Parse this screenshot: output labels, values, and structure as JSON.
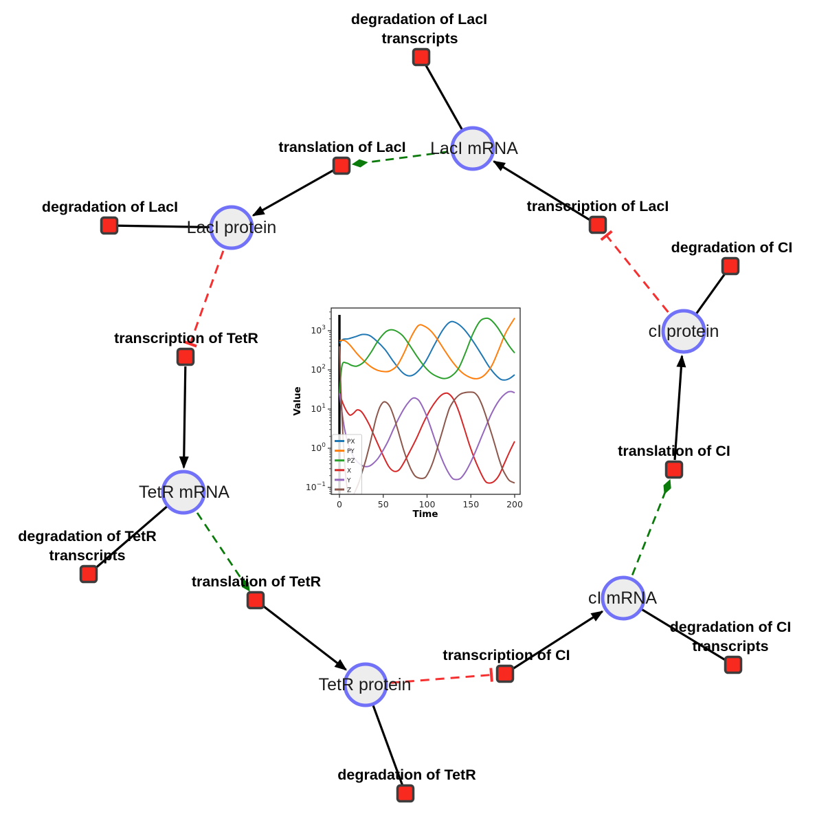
{
  "diagram": {
    "species": {
      "lacI_mRNA": {
        "label": "LacI mRNA"
      },
      "lacI_protein": {
        "label": "LacI protein"
      },
      "tetR_mRNA": {
        "label": "TetR mRNA"
      },
      "tetR_protein": {
        "label": "TetR protein"
      },
      "cI_mRNA": {
        "label": "cI mRNA"
      },
      "cI_protein": {
        "label": "cI protein"
      }
    },
    "reactions": {
      "degradation_lacI_transcripts": {
        "lines": [
          "degradation of LacI",
          "transcripts"
        ]
      },
      "translation_lacI": {
        "lines": [
          "translation of LacI"
        ]
      },
      "transcription_lacI": {
        "lines": [
          "transcription of LacI"
        ]
      },
      "degradation_lacI": {
        "lines": [
          "degradation of LacI"
        ]
      },
      "transcription_tetR": {
        "lines": [
          "transcription of TetR"
        ]
      },
      "degradation_tetR_transcripts": {
        "lines": [
          "degradation of TetR",
          "transcripts"
        ]
      },
      "translation_tetR": {
        "lines": [
          "translation of TetR"
        ]
      },
      "degradation_tetR": {
        "lines": [
          "degradation of TetR"
        ]
      },
      "transcription_cI": {
        "lines": [
          "transcription of CI"
        ]
      },
      "degradation_cI_transcripts": {
        "lines": [
          "degradation of CI",
          "transcripts"
        ]
      },
      "translation_cI": {
        "lines": [
          "translation of CI"
        ]
      },
      "degradation_cI": {
        "lines": [
          "degradation of CI"
        ]
      }
    },
    "colors": {
      "species_fill": "#ededed",
      "species_border": "#7272f8",
      "reaction_fill": "#f8291f",
      "reaction_border": "#3d3d3d",
      "edge_solid": "#000000",
      "edge_modifier": "#0a7a0a",
      "edge_inhibition": "#f53030"
    }
  },
  "chart_data": {
    "type": "line",
    "title": "",
    "xlabel": "Time",
    "ylabel": "Value",
    "yscale": "log",
    "xlim": [
      -8,
      206
    ],
    "ylim": [
      0.066,
      3800
    ],
    "x_ticks": [
      0,
      50,
      100,
      150,
      200
    ],
    "y_tick_exponents": [
      -1,
      0,
      1,
      2,
      3
    ],
    "legend_position": "lower left",
    "grid": false,
    "annotations": {
      "vline_x": 0
    },
    "series": [
      {
        "name": "PX",
        "color": "#1f77b4",
        "points": [
          [
            0,
            480
          ],
          [
            4,
            600
          ],
          [
            10,
            620
          ],
          [
            18,
            700
          ],
          [
            26,
            800
          ],
          [
            34,
            760
          ],
          [
            42,
            560
          ],
          [
            52,
            330
          ],
          [
            62,
            160
          ],
          [
            72,
            85
          ],
          [
            80,
            70
          ],
          [
            88,
            85
          ],
          [
            98,
            160
          ],
          [
            108,
            420
          ],
          [
            118,
            1050
          ],
          [
            126,
            1650
          ],
          [
            133,
            1600
          ],
          [
            142,
            1100
          ],
          [
            152,
            560
          ],
          [
            162,
            250
          ],
          [
            172,
            110
          ],
          [
            182,
            62
          ],
          [
            188,
            55
          ],
          [
            194,
            60
          ],
          [
            200,
            75
          ]
        ]
      },
      {
        "name": "PY",
        "color": "#ff7f0e",
        "points": [
          [
            0,
            560
          ],
          [
            6,
            560
          ],
          [
            12,
            430
          ],
          [
            20,
            260
          ],
          [
            28,
            170
          ],
          [
            36,
            120
          ],
          [
            44,
            97
          ],
          [
            52,
            90
          ],
          [
            58,
            95
          ],
          [
            66,
            130
          ],
          [
            74,
            280
          ],
          [
            82,
            700
          ],
          [
            90,
            1350
          ],
          [
            97,
            1300
          ],
          [
            105,
            950
          ],
          [
            113,
            550
          ],
          [
            121,
            290
          ],
          [
            130,
            150
          ],
          [
            140,
            85
          ],
          [
            150,
            63
          ],
          [
            158,
            60
          ],
          [
            166,
            75
          ],
          [
            174,
            130
          ],
          [
            182,
            330
          ],
          [
            190,
            900
          ],
          [
            200,
            2100
          ]
        ]
      },
      {
        "name": "PZ",
        "color": "#2ca02c",
        "points": [
          [
            0,
            25
          ],
          [
            3,
            130
          ],
          [
            8,
            150
          ],
          [
            14,
            130
          ],
          [
            20,
            125
          ],
          [
            28,
            160
          ],
          [
            36,
            280
          ],
          [
            44,
            550
          ],
          [
            52,
            900
          ],
          [
            58,
            1050
          ],
          [
            64,
            1000
          ],
          [
            72,
            750
          ],
          [
            80,
            430
          ],
          [
            88,
            230
          ],
          [
            96,
            130
          ],
          [
            104,
            85
          ],
          [
            112,
            67
          ],
          [
            120,
            60
          ],
          [
            128,
            70
          ],
          [
            136,
            110
          ],
          [
            144,
            280
          ],
          [
            152,
            800
          ],
          [
            160,
            1700
          ],
          [
            166,
            2050
          ],
          [
            172,
            1950
          ],
          [
            180,
            1250
          ],
          [
            188,
            650
          ],
          [
            194,
            400
          ],
          [
            200,
            270
          ]
        ]
      },
      {
        "name": "X",
        "color": "#d62728",
        "points": [
          [
            0,
            25
          ],
          [
            4,
            14
          ],
          [
            8,
            9
          ],
          [
            12,
            7
          ],
          [
            16,
            7.8
          ],
          [
            20,
            9.5
          ],
          [
            24,
            9
          ],
          [
            28,
            7
          ],
          [
            34,
            4
          ],
          [
            40,
            2
          ],
          [
            48,
            0.8
          ],
          [
            56,
            0.35
          ],
          [
            62,
            0.26
          ],
          [
            68,
            0.28
          ],
          [
            74,
            0.45
          ],
          [
            80,
            0.8
          ],
          [
            88,
            1.8
          ],
          [
            96,
            4.5
          ],
          [
            104,
            10
          ],
          [
            112,
            18
          ],
          [
            118,
            24
          ],
          [
            124,
            25
          ],
          [
            130,
            18
          ],
          [
            136,
            9
          ],
          [
            142,
            3.5
          ],
          [
            148,
            1.3
          ],
          [
            154,
            0.55
          ],
          [
            160,
            0.27
          ],
          [
            166,
            0.15
          ],
          [
            170,
            0.13
          ],
          [
            176,
            0.14
          ],
          [
            182,
            0.2
          ],
          [
            188,
            0.4
          ],
          [
            194,
            0.8
          ],
          [
            200,
            1.5
          ]
        ]
      },
      {
        "name": "Y",
        "color": "#9467bd",
        "points": [
          [
            0,
            25
          ],
          [
            3,
            8
          ],
          [
            6,
            3
          ],
          [
            10,
            1.3
          ],
          [
            14,
            0.75
          ],
          [
            18,
            0.52
          ],
          [
            22,
            0.42
          ],
          [
            26,
            0.36
          ],
          [
            30,
            0.34
          ],
          [
            34,
            0.35
          ],
          [
            38,
            0.4
          ],
          [
            44,
            0.55
          ],
          [
            50,
            0.9
          ],
          [
            56,
            1.6
          ],
          [
            62,
            3.2
          ],
          [
            68,
            6
          ],
          [
            74,
            10.5
          ],
          [
            80,
            16
          ],
          [
            84,
            19
          ],
          [
            88,
            18.5
          ],
          [
            92,
            15
          ],
          [
            98,
            8
          ],
          [
            104,
            3.5
          ],
          [
            110,
            1.4
          ],
          [
            116,
            0.6
          ],
          [
            122,
            0.3
          ],
          [
            128,
            0.18
          ],
          [
            132,
            0.16
          ],
          [
            138,
            0.17
          ],
          [
            144,
            0.25
          ],
          [
            150,
            0.45
          ],
          [
            156,
            0.9
          ],
          [
            162,
            1.9
          ],
          [
            168,
            4
          ],
          [
            174,
            8
          ],
          [
            180,
            14
          ],
          [
            186,
            21
          ],
          [
            192,
            27
          ],
          [
            196,
            28
          ],
          [
            200,
            26
          ]
        ]
      },
      {
        "name": "Z",
        "color": "#8c564b",
        "points": [
          [
            0,
            400
          ],
          [
            2,
            20
          ],
          [
            4,
            2
          ],
          [
            6,
            0.4
          ],
          [
            8,
            0.13
          ],
          [
            10,
            0.07
          ],
          [
            12,
            0.055
          ],
          [
            14,
            0.055
          ],
          [
            16,
            0.065
          ],
          [
            18,
            0.08
          ],
          [
            22,
            0.13
          ],
          [
            26,
            0.25
          ],
          [
            30,
            0.5
          ],
          [
            34,
            1.1
          ],
          [
            38,
            2.6
          ],
          [
            42,
            6
          ],
          [
            46,
            11
          ],
          [
            50,
            15
          ],
          [
            54,
            14.5
          ],
          [
            58,
            11
          ],
          [
            62,
            6.5
          ],
          [
            66,
            3.3
          ],
          [
            70,
            1.6
          ],
          [
            74,
            0.8
          ],
          [
            78,
            0.45
          ],
          [
            82,
            0.28
          ],
          [
            86,
            0.2
          ],
          [
            90,
            0.175
          ],
          [
            94,
            0.17
          ],
          [
            98,
            0.18
          ],
          [
            102,
            0.25
          ],
          [
            106,
            0.4
          ],
          [
            110,
            0.75
          ],
          [
            114,
            1.5
          ],
          [
            118,
            3
          ],
          [
            122,
            6
          ],
          [
            126,
            11
          ],
          [
            132,
            18
          ],
          [
            138,
            24
          ],
          [
            144,
            26.5
          ],
          [
            150,
            27
          ],
          [
            154,
            26
          ],
          [
            158,
            21
          ],
          [
            162,
            14
          ],
          [
            166,
            8
          ],
          [
            170,
            4.2
          ],
          [
            174,
            2.2
          ],
          [
            178,
            1.1
          ],
          [
            182,
            0.55
          ],
          [
            186,
            0.3
          ],
          [
            190,
            0.2
          ],
          [
            194,
            0.15
          ],
          [
            200,
            0.13
          ]
        ]
      }
    ]
  }
}
